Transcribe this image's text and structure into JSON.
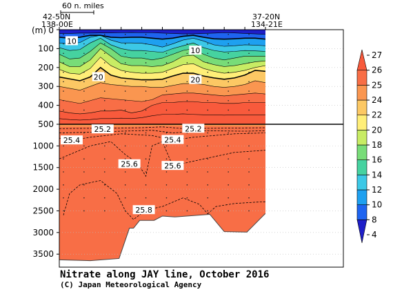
{
  "chart_data": {
    "type": "heatmap",
    "title": "Nitrate along JAY line, October 2016",
    "credit": "(C) Japan Meteorological Agency",
    "ylabel": "(m)",
    "scale_bar_label": "60 n. miles",
    "start_station": {
      "lat": "42-50N",
      "lon": "138-00E"
    },
    "end_station": {
      "lat": "37-20N",
      "lon": "134-21E"
    },
    "upper_panel": {
      "ylim": [
        0,
        500
      ],
      "yticks": [
        0,
        100,
        200,
        300,
        400,
        500
      ]
    },
    "lower_panel": {
      "ylim": [
        500,
        3800
      ],
      "yticks": [
        1000,
        1500,
        2000,
        2500,
        3000,
        3500
      ]
    },
    "colorbar": {
      "ticks": [
        4,
        8,
        10,
        12,
        14,
        16,
        18,
        20,
        22,
        24,
        25,
        26,
        27
      ],
      "levels": [
        4,
        8,
        10,
        12,
        14,
        16,
        18,
        20,
        22,
        24,
        25,
        26,
        27
      ],
      "colors": [
        "#1e1ec8",
        "#1e64f0",
        "#1ea0f0",
        "#3cc8e6",
        "#46d2a0",
        "#78dc78",
        "#c8ec64",
        "#ffee78",
        "#fcc864",
        "#fa9650",
        "#f86e46",
        "#f85a3c"
      ]
    },
    "contour_labels": [
      {
        "value": "10",
        "x": 0.06,
        "depth": 60
      },
      {
        "value": "10",
        "x": 0.66,
        "depth": 110
      },
      {
        "value": "20",
        "x": 0.19,
        "depth": 250
      },
      {
        "value": "20",
        "x": 0.66,
        "depth": 265
      },
      {
        "value": "25.2",
        "x": 0.21,
        "depth": 615
      },
      {
        "value": "25.2",
        "x": 0.65,
        "depth": 600
      },
      {
        "value": "25.4",
        "x": 0.06,
        "depth": 870
      },
      {
        "value": "25.4",
        "x": 0.55,
        "depth": 860
      },
      {
        "value": "25.6",
        "x": 0.34,
        "depth": 1420
      },
      {
        "value": "25.6",
        "x": 0.55,
        "depth": 1460
      },
      {
        "value": "25.8",
        "x": 0.41,
        "depth": 2480
      }
    ],
    "bottom_profile": [
      {
        "x": 0.0,
        "depth": 3630
      },
      {
        "x": 0.15,
        "depth": 3650
      },
      {
        "x": 0.29,
        "depth": 3600
      },
      {
        "x": 0.34,
        "depth": 2900
      },
      {
        "x": 0.36,
        "depth": 2900
      },
      {
        "x": 0.39,
        "depth": 2720
      },
      {
        "x": 0.46,
        "depth": 2720
      },
      {
        "x": 0.5,
        "depth": 2620
      },
      {
        "x": 0.56,
        "depth": 2640
      },
      {
        "x": 0.73,
        "depth": 2580
      },
      {
        "x": 0.8,
        "depth": 2980
      },
      {
        "x": 0.91,
        "depth": 2990
      },
      {
        "x": 1.0,
        "depth": 2560
      }
    ]
  }
}
